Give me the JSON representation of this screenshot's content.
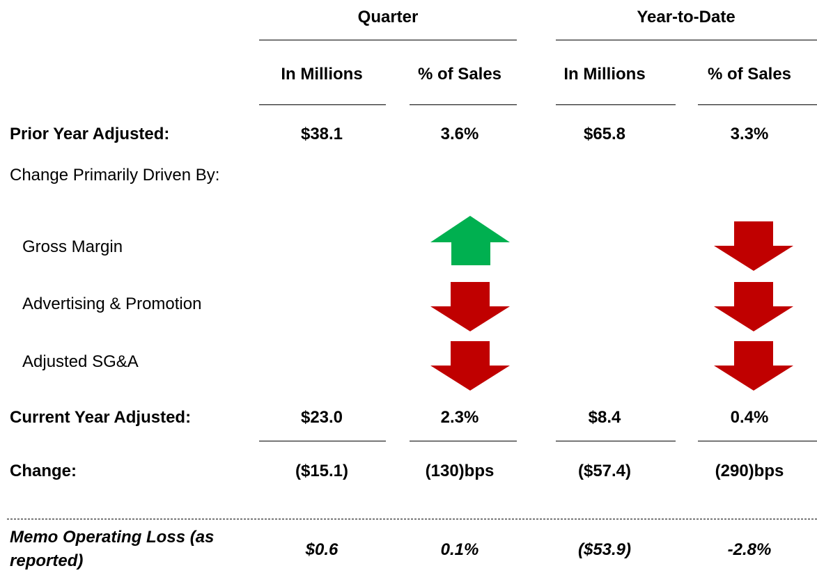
{
  "header": {
    "groups": [
      "Quarter",
      "Year-to-Date"
    ],
    "subheaders": [
      "In Millions",
      "% of Sales",
      "In Millions",
      "% of Sales"
    ]
  },
  "rows": [
    {
      "label": "Prior Year Adjusted:",
      "values": [
        "$38.1",
        "3.6%",
        "$65.8",
        "3.3%"
      ]
    },
    {
      "label": "Change Primarily Driven By:"
    },
    {
      "label": "Gross Margin"
    },
    {
      "label": "Advertising & Promotion"
    },
    {
      "label": "Adjusted SG&A"
    },
    {
      "label": "Current Year Adjusted:",
      "values": [
        "$23.0",
        "2.3%",
        "$8.4",
        "0.4%"
      ]
    },
    {
      "label": "Change:",
      "values": [
        "($15.1)",
        "(130)bps",
        "($57.4)",
        "(290)bps"
      ]
    },
    {
      "label": "Memo Operating Loss (as reported)",
      "values": [
        "$0.6",
        "0.1%",
        "($53.9)",
        "-2.8%"
      ]
    }
  ]
}
